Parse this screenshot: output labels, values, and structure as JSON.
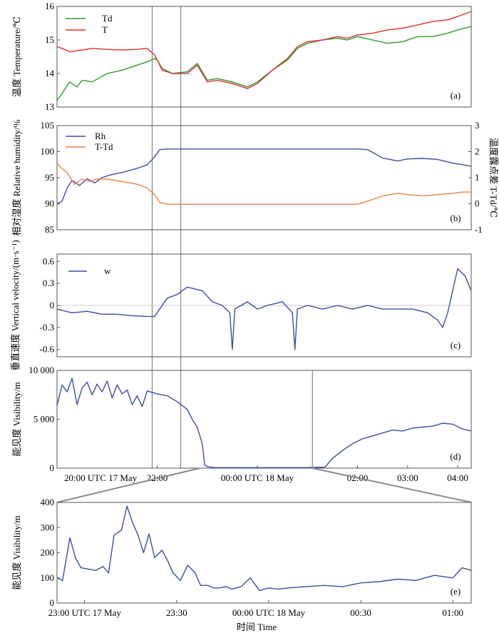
{
  "colors": {
    "Td": "#2e9a2e",
    "T": "#e0302c",
    "Rh": "#3b4ea5",
    "T-Td": "#f07f45",
    "w": "#3b4ea5",
    "vis": "#3b4ea5",
    "marker": "#8a8a8a"
  },
  "xaxis_main": {
    "ticks": [
      "20:00 UTC 17 May",
      "22:00",
      "00:00 UTC 18 May",
      "02:00",
      "03:00",
      "04:00"
    ]
  },
  "xaxis_zoom": {
    "ticks": [
      "23:00 UTC 17 May",
      "23:30",
      "00:00 UTC 18 May",
      "00:30",
      "01:00"
    ],
    "xlabel": "时间 Time"
  },
  "chart_data": [
    {
      "type": "line",
      "panel_label": "(a)",
      "ylabel_cn": "温度",
      "ylabel_en": "Temperature/℃",
      "ylim": [
        13,
        16
      ],
      "yticks": [
        "13",
        "14",
        "15",
        "16"
      ],
      "x_range_hours_utc": [
        20.0,
        28.27
      ],
      "legend": "top-left",
      "series": [
        {
          "name": "Td",
          "x": [
            20.0,
            20.1,
            20.25,
            20.4,
            20.5,
            20.7,
            21.0,
            21.3,
            21.6,
            21.8,
            21.95,
            22.0,
            22.1,
            22.3,
            22.6,
            22.8,
            23.0,
            23.2,
            23.5,
            23.8,
            24.0,
            24.3,
            24.6,
            24.8,
            25.0,
            25.3,
            25.6,
            25.8,
            26.0,
            26.3,
            26.6,
            26.9,
            27.2,
            27.5,
            27.8,
            28.0,
            28.27
          ],
          "values": [
            13.2,
            13.4,
            13.75,
            13.6,
            13.8,
            13.75,
            14.0,
            14.1,
            14.25,
            14.35,
            14.45,
            14.4,
            14.15,
            14.0,
            14.05,
            14.3,
            13.8,
            13.85,
            13.75,
            13.6,
            13.75,
            14.1,
            14.4,
            14.75,
            14.9,
            15.0,
            15.05,
            15.0,
            15.1,
            15.0,
            14.9,
            14.95,
            15.1,
            15.1,
            15.2,
            15.3,
            15.4
          ]
        },
        {
          "name": "T",
          "x": [
            20.0,
            20.1,
            20.25,
            20.5,
            20.7,
            21.0,
            21.3,
            21.6,
            21.8,
            21.95,
            22.0,
            22.1,
            22.3,
            22.6,
            22.8,
            23.0,
            23.2,
            23.5,
            23.8,
            24.0,
            24.3,
            24.6,
            24.8,
            25.0,
            25.3,
            25.6,
            25.8,
            26.0,
            26.3,
            26.6,
            26.9,
            27.2,
            27.5,
            27.8,
            28.0,
            28.27
          ],
          "values": [
            14.8,
            14.75,
            14.65,
            14.7,
            14.75,
            14.72,
            14.7,
            14.72,
            14.75,
            14.55,
            14.4,
            14.1,
            14.0,
            14.0,
            14.25,
            13.75,
            13.8,
            13.7,
            13.55,
            13.7,
            14.1,
            14.45,
            14.8,
            14.95,
            15.0,
            15.1,
            15.05,
            15.15,
            15.2,
            15.3,
            15.35,
            15.45,
            15.55,
            15.6,
            15.7,
            15.85
          ]
        }
      ]
    },
    {
      "type": "line",
      "panel_label": "(b)",
      "ylabel_cn": "相对湿度",
      "ylabel_en": "Relative humidity/%",
      "ylabel2_cn": "温度露点差",
      "ylabel2_en": "T-Td/℃",
      "ylim": [
        85,
        105
      ],
      "yticks": [
        "85",
        "90",
        "95",
        "100",
        "105"
      ],
      "ylim2": [
        -1,
        3
      ],
      "yticks2": [
        "-1",
        "0",
        "1",
        "2",
        "3"
      ],
      "legend": "top-left",
      "series": [
        {
          "name": "Rh",
          "axis": "left",
          "x": [
            20.0,
            20.1,
            20.2,
            20.3,
            20.45,
            20.6,
            20.75,
            20.9,
            21.05,
            21.3,
            21.6,
            21.8,
            21.95,
            22.05,
            22.2,
            24.0,
            26.0,
            26.2,
            26.5,
            26.8,
            27.0,
            27.3,
            27.6,
            27.9,
            28.1,
            28.27
          ],
          "values": [
            90,
            90.5,
            93,
            94.5,
            93.5,
            94.8,
            94,
            95,
            95.5,
            96,
            96.8,
            97.5,
            99,
            100.4,
            100.5,
            100.5,
            100.5,
            100.4,
            98.8,
            98.2,
            98.6,
            98.7,
            98.5,
            97.8,
            97.5,
            97.2
          ]
        },
        {
          "name": "T-Td",
          "axis": "right",
          "x": [
            20.0,
            20.1,
            20.2,
            20.35,
            20.5,
            20.65,
            20.8,
            21.0,
            21.3,
            21.6,
            21.8,
            21.95,
            22.05,
            22.2,
            24.0,
            26.0,
            26.2,
            26.5,
            26.8,
            27.0,
            27.3,
            27.6,
            27.9,
            28.1,
            28.27
          ],
          "values": [
            1.55,
            1.35,
            1.2,
            0.75,
            0.95,
            0.85,
            0.95,
            0.95,
            0.85,
            0.75,
            0.6,
            0.35,
            0.05,
            -0.02,
            -0.02,
            -0.02,
            0.1,
            0.3,
            0.4,
            0.35,
            0.3,
            0.35,
            0.4,
            0.45,
            0.45
          ]
        }
      ]
    },
    {
      "type": "line",
      "panel_label": "(c)",
      "ylabel_cn": "垂直速度",
      "ylabel_en": "Vertical velocity/(m·s⁻¹)",
      "ylim": [
        -0.7,
        0.7
      ],
      "yticks": [
        "-0.6",
        "-0.3",
        "0",
        "0.3",
        "0.6"
      ],
      "legend": "top-left",
      "series": [
        {
          "name": "w",
          "x": [
            20.0,
            20.3,
            20.6,
            20.9,
            21.2,
            21.5,
            21.8,
            21.95,
            22.05,
            22.2,
            22.4,
            22.6,
            22.9,
            23.1,
            23.3,
            23.45,
            23.5,
            23.55,
            23.8,
            24.0,
            24.2,
            24.5,
            24.7,
            24.75,
            24.8,
            25.0,
            25.3,
            25.6,
            25.9,
            26.2,
            26.5,
            26.8,
            27.1,
            27.4,
            27.6,
            27.7,
            27.8,
            27.9,
            28.0,
            28.15,
            28.27
          ],
          "values": [
            -0.05,
            -0.1,
            -0.08,
            -0.12,
            -0.12,
            -0.14,
            -0.15,
            -0.15,
            -0.05,
            0.1,
            0.15,
            0.25,
            0.2,
            0.05,
            0.0,
            -0.1,
            -0.6,
            -0.05,
            0.05,
            -0.05,
            0.0,
            0.05,
            -0.1,
            -0.6,
            -0.05,
            0.0,
            -0.05,
            0.0,
            -0.05,
            0.0,
            -0.05,
            -0.05,
            -0.05,
            -0.1,
            -0.2,
            -0.3,
            -0.1,
            0.2,
            0.5,
            0.4,
            0.2
          ]
        }
      ]
    },
    {
      "type": "line",
      "panel_label": "(d)",
      "ylabel_cn": "能见度",
      "ylabel_en": "Visibility/m",
      "ylim": [
        0,
        10000
      ],
      "yticks": [
        "0",
        "5 000",
        "10 000"
      ],
      "series": [
        {
          "name": "Visibility",
          "x": [
            20.0,
            20.1,
            20.2,
            20.3,
            20.4,
            20.5,
            20.6,
            20.7,
            20.8,
            20.9,
            21.0,
            21.1,
            21.2,
            21.3,
            21.4,
            21.5,
            21.6,
            21.7,
            21.8,
            22.0,
            22.2,
            22.4,
            22.6,
            22.7,
            22.8,
            22.9,
            22.95,
            23.0,
            23.1,
            23.2,
            24.0,
            25.0,
            25.35,
            25.5,
            25.7,
            25.9,
            26.1,
            26.3,
            26.5,
            26.7,
            26.9,
            27.1,
            27.3,
            27.5,
            27.7,
            27.9,
            28.1,
            28.27
          ],
          "values": [
            6400,
            8500,
            7800,
            9200,
            6500,
            8200,
            8800,
            7500,
            8600,
            7800,
            8900,
            7200,
            8500,
            7600,
            8000,
            6500,
            7400,
            6300,
            7900,
            7600,
            7400,
            6800,
            6000,
            5000,
            4200,
            2500,
            300,
            150,
            80,
            60,
            50,
            60,
            100,
            1000,
            1800,
            2500,
            3000,
            3300,
            3600,
            3900,
            3800,
            4100,
            4200,
            4300,
            4600,
            4500,
            4000,
            3800
          ]
        }
      ]
    },
    {
      "type": "line",
      "panel_label": "(e)",
      "ylabel_cn": "能见度",
      "ylabel_en": "Visibility/m",
      "ylim": [
        0,
        400
      ],
      "yticks": [
        "0",
        "100",
        "200",
        "300",
        "400"
      ],
      "x_range_hours_utc": [
        22.85,
        25.1
      ],
      "series": [
        {
          "name": "Visibility",
          "x": [
            22.85,
            22.88,
            22.92,
            22.95,
            22.98,
            23.02,
            23.06,
            23.1,
            23.13,
            23.16,
            23.2,
            23.23,
            23.26,
            23.29,
            23.32,
            23.35,
            23.38,
            23.42,
            23.45,
            23.48,
            23.52,
            23.56,
            23.6,
            23.63,
            23.67,
            23.7,
            23.73,
            23.77,
            23.8,
            23.85,
            23.9,
            23.95,
            24.0,
            24.05,
            24.1,
            24.2,
            24.3,
            24.4,
            24.5,
            24.6,
            24.7,
            24.8,
            24.9,
            25.0,
            25.05,
            25.1
          ],
          "values": [
            100,
            90,
            260,
            180,
            140,
            135,
            130,
            145,
            120,
            270,
            290,
            385,
            320,
            270,
            200,
            275,
            180,
            210,
            170,
            120,
            90,
            150,
            120,
            70,
            70,
            60,
            60,
            65,
            55,
            65,
            100,
            50,
            60,
            55,
            60,
            65,
            70,
            65,
            80,
            85,
            95,
            90,
            110,
            100,
            140,
            130
          ]
        }
      ]
    }
  ]
}
